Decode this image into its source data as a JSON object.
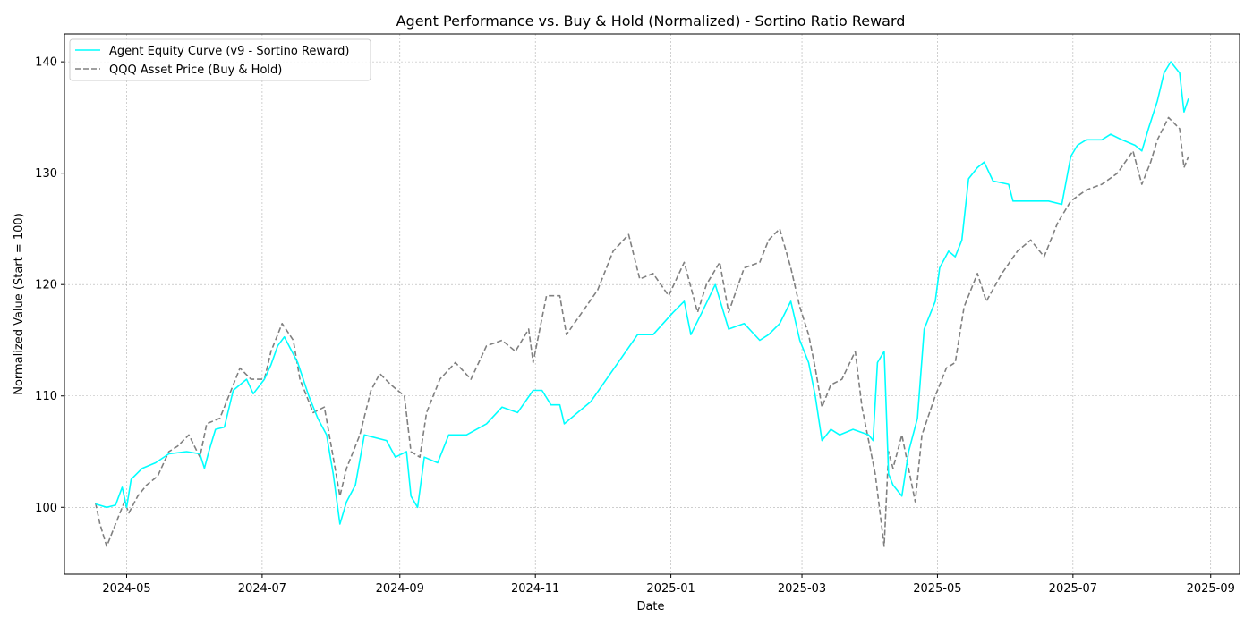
{
  "chart_data": {
    "type": "line",
    "title": "Agent Performance vs. Buy & Hold (Normalized) - Sortino Ratio Reward",
    "xlabel": "Date",
    "ylabel": "Normalized Value (Start = 100)",
    "xlim": [
      "2024-04-03",
      "2025-09-14"
    ],
    "ylim": [
      94,
      142.5
    ],
    "x_ticks": [
      "2024-05-01",
      "2024-07-01",
      "2024-09-01",
      "2024-11-01",
      "2025-01-01",
      "2025-03-01",
      "2025-05-01",
      "2025-07-01",
      "2025-09-01"
    ],
    "x_tick_labels": [
      "2024-05",
      "2024-07",
      "2024-09",
      "2024-11",
      "2025-01",
      "2025-03",
      "2025-05",
      "2025-07",
      "2025-09"
    ],
    "y_ticks": [
      100,
      110,
      120,
      130,
      140
    ],
    "y_tick_labels": [
      "100",
      "110",
      "120",
      "130",
      "140"
    ],
    "grid": true,
    "legend_position": "top-left",
    "series": [
      {
        "name": "Agent Equity Curve (v9 - Sortino Reward)",
        "color": "#00ffff",
        "style": "solid",
        "points": [
          [
            "2024-04-17",
            100.3
          ],
          [
            "2024-04-22",
            100.0
          ],
          [
            "2024-04-26",
            100.2
          ],
          [
            "2024-04-29",
            101.8
          ],
          [
            "2024-05-01",
            100.0
          ],
          [
            "2024-05-03",
            102.5
          ],
          [
            "2024-05-08",
            103.5
          ],
          [
            "2024-05-14",
            104.0
          ],
          [
            "2024-05-20",
            104.8
          ],
          [
            "2024-05-28",
            105.0
          ],
          [
            "2024-06-03",
            104.8
          ],
          [
            "2024-06-05",
            103.5
          ],
          [
            "2024-06-07",
            105.0
          ],
          [
            "2024-06-10",
            107.0
          ],
          [
            "2024-06-14",
            107.2
          ],
          [
            "2024-06-18",
            110.5
          ],
          [
            "2024-06-24",
            111.5
          ],
          [
            "2024-06-27",
            110.2
          ],
          [
            "2024-07-02",
            111.5
          ],
          [
            "2024-07-05",
            112.8
          ],
          [
            "2024-07-08",
            114.5
          ],
          [
            "2024-07-11",
            115.3
          ],
          [
            "2024-07-17",
            113.0
          ],
          [
            "2024-07-22",
            110.0
          ],
          [
            "2024-07-26",
            108.0
          ],
          [
            "2024-07-30",
            106.5
          ],
          [
            "2024-08-02",
            103.0
          ],
          [
            "2024-08-05",
            98.5
          ],
          [
            "2024-08-08",
            100.5
          ],
          [
            "2024-08-12",
            102.0
          ],
          [
            "2024-08-16",
            106.5
          ],
          [
            "2024-08-26",
            106.0
          ],
          [
            "2024-08-30",
            104.5
          ],
          [
            "2024-09-04",
            105.0
          ],
          [
            "2024-09-06",
            101.0
          ],
          [
            "2024-09-09",
            100.0
          ],
          [
            "2024-09-12",
            104.5
          ],
          [
            "2024-09-18",
            104.0
          ],
          [
            "2024-09-23",
            106.5
          ],
          [
            "2024-10-01",
            106.5
          ],
          [
            "2024-10-10",
            107.5
          ],
          [
            "2024-10-17",
            109.0
          ],
          [
            "2024-10-24",
            108.5
          ],
          [
            "2024-10-31",
            110.5
          ],
          [
            "2024-11-04",
            110.5
          ],
          [
            "2024-11-08",
            109.2
          ],
          [
            "2024-11-12",
            109.2
          ],
          [
            "2024-11-14",
            107.5
          ],
          [
            "2024-11-20",
            108.5
          ],
          [
            "2024-11-26",
            109.5
          ],
          [
            "2024-12-03",
            111.5
          ],
          [
            "2024-12-10",
            113.5
          ],
          [
            "2024-12-17",
            115.5
          ],
          [
            "2024-12-24",
            115.5
          ],
          [
            "2025-01-02",
            117.5
          ],
          [
            "2025-01-07",
            118.5
          ],
          [
            "2025-01-10",
            115.5
          ],
          [
            "2025-01-15",
            117.5
          ],
          [
            "2025-01-21",
            120.0
          ],
          [
            "2025-01-27",
            116.0
          ],
          [
            "2025-02-03",
            116.5
          ],
          [
            "2025-02-10",
            115.0
          ],
          [
            "2025-02-14",
            115.5
          ],
          [
            "2025-02-19",
            116.5
          ],
          [
            "2025-02-24",
            118.5
          ],
          [
            "2025-02-28",
            115.0
          ],
          [
            "2025-03-04",
            113.0
          ],
          [
            "2025-03-07",
            110.0
          ],
          [
            "2025-03-10",
            106.0
          ],
          [
            "2025-03-14",
            107.0
          ],
          [
            "2025-03-18",
            106.5
          ],
          [
            "2025-03-24",
            107.0
          ],
          [
            "2025-03-31",
            106.5
          ],
          [
            "2025-04-02",
            106.0
          ],
          [
            "2025-04-04",
            113.0
          ],
          [
            "2025-04-07",
            114.0
          ],
          [
            "2025-04-09",
            103.0
          ],
          [
            "2025-04-11",
            102.0
          ],
          [
            "2025-04-15",
            101.0
          ],
          [
            "2025-04-18",
            105.0
          ],
          [
            "2025-04-22",
            108.0
          ],
          [
            "2025-04-25",
            116.0
          ],
          [
            "2025-04-30",
            118.5
          ],
          [
            "2025-05-02",
            121.5
          ],
          [
            "2025-05-06",
            123.0
          ],
          [
            "2025-05-09",
            122.5
          ],
          [
            "2025-05-12",
            124.0
          ],
          [
            "2025-05-15",
            129.5
          ],
          [
            "2025-05-19",
            130.5
          ],
          [
            "2025-05-22",
            131.0
          ],
          [
            "2025-05-26",
            129.3
          ],
          [
            "2025-06-02",
            129.0
          ],
          [
            "2025-06-04",
            127.5
          ],
          [
            "2025-06-20",
            127.5
          ],
          [
            "2025-06-26",
            127.2
          ],
          [
            "2025-06-30",
            131.5
          ],
          [
            "2025-07-03",
            132.5
          ],
          [
            "2025-07-07",
            133.0
          ],
          [
            "2025-07-14",
            133.0
          ],
          [
            "2025-07-18",
            133.5
          ],
          [
            "2025-07-23",
            133.0
          ],
          [
            "2025-07-29",
            132.5
          ],
          [
            "2025-08-01",
            132.0
          ],
          [
            "2025-08-04",
            134.0
          ],
          [
            "2025-08-08",
            136.5
          ],
          [
            "2025-08-11",
            139.0
          ],
          [
            "2025-08-14",
            140.0
          ],
          [
            "2025-08-18",
            139.0
          ],
          [
            "2025-08-20",
            135.5
          ],
          [
            "2025-08-22",
            136.7
          ]
        ]
      },
      {
        "name": "QQQ Asset Price (Buy & Hold)",
        "color": "#808080",
        "style": "dashed",
        "points": [
          [
            "2024-04-17",
            100.4
          ],
          [
            "2024-04-19",
            98.5
          ],
          [
            "2024-04-22",
            96.5
          ],
          [
            "2024-04-26",
            98.5
          ],
          [
            "2024-04-30",
            100.5
          ],
          [
            "2024-05-02",
            99.5
          ],
          [
            "2024-05-06",
            101.0
          ],
          [
            "2024-05-10",
            102.0
          ],
          [
            "2024-05-15",
            102.8
          ],
          [
            "2024-05-20",
            105.0
          ],
          [
            "2024-05-24",
            105.5
          ],
          [
            "2024-05-29",
            106.5
          ],
          [
            "2024-06-03",
            104.5
          ],
          [
            "2024-06-06",
            107.5
          ],
          [
            "2024-06-12",
            108.0
          ],
          [
            "2024-06-17",
            110.5
          ],
          [
            "2024-06-21",
            112.5
          ],
          [
            "2024-06-26",
            111.5
          ],
          [
            "2024-07-02",
            111.5
          ],
          [
            "2024-07-05",
            114.0
          ],
          [
            "2024-07-10",
            116.5
          ],
          [
            "2024-07-15",
            115.0
          ],
          [
            "2024-07-18",
            111.5
          ],
          [
            "2024-07-24",
            108.5
          ],
          [
            "2024-07-29",
            109.0
          ],
          [
            "2024-08-02",
            104.5
          ],
          [
            "2024-08-05",
            101.0
          ],
          [
            "2024-08-08",
            103.5
          ],
          [
            "2024-08-14",
            106.5
          ],
          [
            "2024-08-19",
            110.5
          ],
          [
            "2024-08-23",
            112.0
          ],
          [
            "2024-08-28",
            111.0
          ],
          [
            "2024-09-03",
            110.0
          ],
          [
            "2024-09-06",
            105.0
          ],
          [
            "2024-09-10",
            104.5
          ],
          [
            "2024-09-13",
            108.5
          ],
          [
            "2024-09-19",
            111.5
          ],
          [
            "2024-09-26",
            113.0
          ],
          [
            "2024-10-03",
            111.5
          ],
          [
            "2024-10-10",
            114.5
          ],
          [
            "2024-10-17",
            115.0
          ],
          [
            "2024-10-23",
            114.0
          ],
          [
            "2024-10-29",
            116.0
          ],
          [
            "2024-10-31",
            113.0
          ],
          [
            "2024-11-06",
            119.0
          ],
          [
            "2024-11-12",
            119.0
          ],
          [
            "2024-11-15",
            115.5
          ],
          [
            "2024-11-22",
            117.5
          ],
          [
            "2024-11-29",
            119.5
          ],
          [
            "2024-12-06",
            123.0
          ],
          [
            "2024-12-13",
            124.5
          ],
          [
            "2024-12-18",
            120.5
          ],
          [
            "2024-12-24",
            121.0
          ],
          [
            "2024-12-31",
            119.0
          ],
          [
            "2025-01-07",
            122.0
          ],
          [
            "2025-01-13",
            117.5
          ],
          [
            "2025-01-17",
            120.0
          ],
          [
            "2025-01-23",
            122.0
          ],
          [
            "2025-01-27",
            117.5
          ],
          [
            "2025-02-03",
            121.5
          ],
          [
            "2025-02-10",
            122.0
          ],
          [
            "2025-02-14",
            124.0
          ],
          [
            "2025-02-19",
            125.0
          ],
          [
            "2025-02-24",
            121.5
          ],
          [
            "2025-02-28",
            118.0
          ],
          [
            "2025-03-04",
            115.5
          ],
          [
            "2025-03-07",
            112.5
          ],
          [
            "2025-03-10",
            109.0
          ],
          [
            "2025-03-14",
            111.0
          ],
          [
            "2025-03-19",
            111.5
          ],
          [
            "2025-03-25",
            114.0
          ],
          [
            "2025-03-28",
            109.0
          ],
          [
            "2025-04-03",
            103.0
          ],
          [
            "2025-04-07",
            96.5
          ],
          [
            "2025-04-09",
            105.0
          ],
          [
            "2025-04-11",
            103.5
          ],
          [
            "2025-04-15",
            106.5
          ],
          [
            "2025-04-21",
            100.5
          ],
          [
            "2025-04-24",
            106.5
          ],
          [
            "2025-04-30",
            110.0
          ],
          [
            "2025-05-05",
            112.5
          ],
          [
            "2025-05-09",
            113.0
          ],
          [
            "2025-05-13",
            118.0
          ],
          [
            "2025-05-19",
            121.0
          ],
          [
            "2025-05-23",
            118.5
          ],
          [
            "2025-05-30",
            121.0
          ],
          [
            "2025-06-06",
            123.0
          ],
          [
            "2025-06-12",
            124.0
          ],
          [
            "2025-06-18",
            122.5
          ],
          [
            "2025-06-24",
            125.5
          ],
          [
            "2025-06-30",
            127.5
          ],
          [
            "2025-07-07",
            128.5
          ],
          [
            "2025-07-14",
            129.0
          ],
          [
            "2025-07-21",
            130.0
          ],
          [
            "2025-07-28",
            132.0
          ],
          [
            "2025-08-01",
            129.0
          ],
          [
            "2025-08-05",
            131.0
          ],
          [
            "2025-08-08",
            133.0
          ],
          [
            "2025-08-13",
            135.0
          ],
          [
            "2025-08-18",
            134.0
          ],
          [
            "2025-08-20",
            130.5
          ],
          [
            "2025-08-22",
            131.5
          ]
        ]
      }
    ]
  }
}
